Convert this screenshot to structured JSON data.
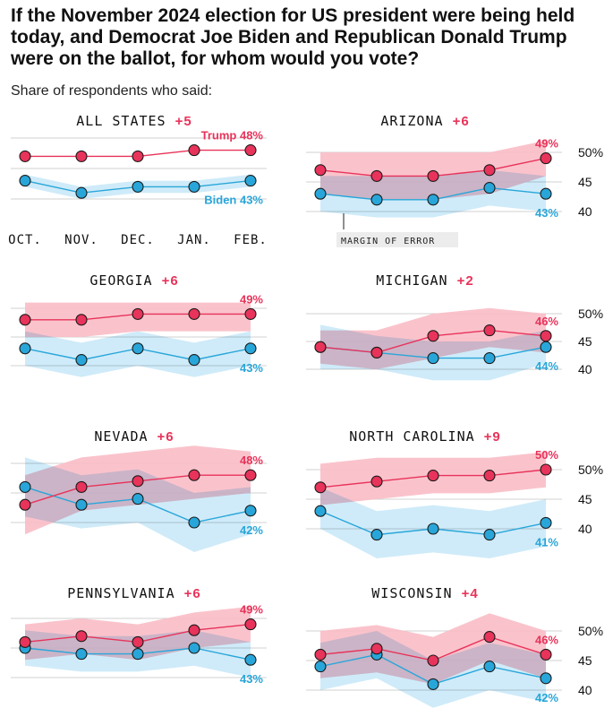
{
  "headline": "If the November 2024 election for US president were being held today, and Democrat Joe Biden and Republican Donald Trump were on the ballot, for whom would you vote?",
  "subhead": "Share of respondents who said:",
  "margin_label": "MARGIN OF ERROR",
  "colors": {
    "trump": "#e8335a",
    "trump_band": "#f9bcc6",
    "biden": "#29a6d9",
    "biden_band": "#bfe4f7",
    "overlap": "#b1aad3",
    "lead": "#e8335a"
  },
  "chart_data": {
    "type": "line",
    "x": [
      "OCT.",
      "NOV.",
      "DEC.",
      "JAN.",
      "FEB."
    ],
    "y_ticks": [
      "50%",
      "45",
      "40"
    ],
    "ylim": [
      35,
      52
    ],
    "panels": [
      {
        "title": "ALL STATES",
        "lead": "+5",
        "trump_label": "Trump 48%",
        "biden_label": "Biden 43%",
        "series": [
          {
            "name": "Trump",
            "values": [
              47,
              47,
              47,
              48,
              48
            ],
            "band": null
          },
          {
            "name": "Biden",
            "values": [
              43,
              41,
              42,
              42,
              43
            ],
            "band": [
              [
                42,
                44
              ],
              [
                40,
                42
              ],
              [
                41,
                43
              ],
              [
                41,
                43
              ],
              [
                42,
                44
              ]
            ]
          }
        ]
      },
      {
        "title": "ARIZONA",
        "lead": "+6",
        "trump_label": "49%",
        "biden_label": "43%",
        "series": [
          {
            "name": "Trump",
            "values": [
              47,
              46,
              46,
              47,
              49
            ],
            "band": [
              [
                43,
                50
              ],
              [
                42,
                50
              ],
              [
                42,
                50
              ],
              [
                43,
                50
              ],
              [
                46,
                52
              ]
            ]
          },
          {
            "name": "Biden",
            "values": [
              43,
              42,
              42,
              44,
              43
            ],
            "band": [
              [
                40,
                46
              ],
              [
                39,
                46
              ],
              [
                39,
                46
              ],
              [
                41,
                47
              ],
              [
                40,
                46
              ]
            ]
          }
        ]
      },
      {
        "title": "GEORGIA",
        "lead": "+6",
        "trump_label": "49%",
        "biden_label": "43%",
        "series": [
          {
            "name": "Trump",
            "values": [
              48,
              48,
              49,
              49,
              49
            ],
            "band": [
              [
                45,
                51
              ],
              [
                45,
                51
              ],
              [
                46,
                51
              ],
              [
                46,
                51
              ],
              [
                46,
                51
              ]
            ]
          },
          {
            "name": "Biden",
            "values": [
              43,
              41,
              43,
              41,
              43
            ],
            "band": [
              [
                40,
                46
              ],
              [
                38,
                44
              ],
              [
                40,
                46
              ],
              [
                38,
                44
              ],
              [
                40,
                46
              ]
            ]
          }
        ]
      },
      {
        "title": "MICHIGAN",
        "lead": "+2",
        "trump_label": "46%",
        "biden_label": "44%",
        "series": [
          {
            "name": "Trump",
            "values": [
              44,
              43,
              46,
              47,
              46
            ],
            "band": [
              [
                41,
                47
              ],
              [
                40,
                47
              ],
              [
                42,
                50
              ],
              [
                44,
                51
              ],
              [
                43,
                50
              ]
            ]
          },
          {
            "name": "Biden",
            "values": [
              44,
              43,
              42,
              42,
              44
            ],
            "band": [
              [
                40,
                48
              ],
              [
                40,
                46
              ],
              [
                38,
                45
              ],
              [
                38,
                45
              ],
              [
                41,
                47
              ]
            ]
          }
        ]
      },
      {
        "title": "NEVADA",
        "lead": "+6",
        "trump_label": "48%",
        "biden_label": "42%",
        "series": [
          {
            "name": "Trump",
            "values": [
              43,
              46,
              47,
              48,
              48
            ],
            "band": [
              [
                38,
                48
              ],
              [
                42,
                51
              ],
              [
                43,
                52
              ],
              [
                44,
                53
              ],
              [
                45,
                52
              ]
            ]
          },
          {
            "name": "Biden",
            "values": [
              46,
              43,
              44,
              40,
              42
            ],
            "band": [
              [
                41,
                51
              ],
              [
                39,
                48
              ],
              [
                40,
                49
              ],
              [
                35,
                45
              ],
              [
                38,
                46
              ]
            ]
          }
        ]
      },
      {
        "title": "NORTH CAROLINA",
        "lead": "+9",
        "trump_label": "50%",
        "biden_label": "41%",
        "series": [
          {
            "name": "Trump",
            "values": [
              47,
              48,
              49,
              49,
              50
            ],
            "band": [
              [
                44,
                51
              ],
              [
                45,
                52
              ],
              [
                46,
                52
              ],
              [
                46,
                52
              ],
              [
                47,
                53
              ]
            ]
          },
          {
            "name": "Biden",
            "values": [
              43,
              39,
              40,
              39,
              41
            ],
            "band": [
              [
                40,
                47
              ],
              [
                35,
                43
              ],
              [
                36,
                44
              ],
              [
                35,
                43
              ],
              [
                37,
                45
              ]
            ]
          }
        ]
      },
      {
        "title": "PENNSYLVANIA",
        "lead": "+6",
        "trump_label": "49%",
        "biden_label": "43%",
        "series": [
          {
            "name": "Trump",
            "values": [
              46,
              47,
              46,
              48,
              49
            ],
            "band": [
              [
                43,
                49
              ],
              [
                44,
                50
              ],
              [
                43,
                49
              ],
              [
                45,
                51
              ],
              [
                46,
                52
              ]
            ]
          },
          {
            "name": "Biden",
            "values": [
              45,
              44,
              44,
              45,
              43
            ],
            "band": [
              [
                42,
                48
              ],
              [
                41,
                47
              ],
              [
                41,
                47
              ],
              [
                42,
                48
              ],
              [
                40,
                46
              ]
            ]
          }
        ]
      },
      {
        "title": "WISCONSIN",
        "lead": "+4",
        "trump_label": "46%",
        "biden_label": "42%",
        "series": [
          {
            "name": "Trump",
            "values": [
              46,
              47,
              45,
              49,
              46
            ],
            "band": [
              [
                42,
                50
              ],
              [
                43,
                51
              ],
              [
                41,
                49
              ],
              [
                45,
                53
              ],
              [
                42,
                50
              ]
            ]
          },
          {
            "name": "Biden",
            "values": [
              44,
              46,
              41,
              44,
              42
            ],
            "band": [
              [
                40,
                48
              ],
              [
                42,
                50
              ],
              [
                37,
                45
              ],
              [
                40,
                48
              ],
              [
                38,
                46
              ]
            ]
          }
        ]
      }
    ]
  }
}
